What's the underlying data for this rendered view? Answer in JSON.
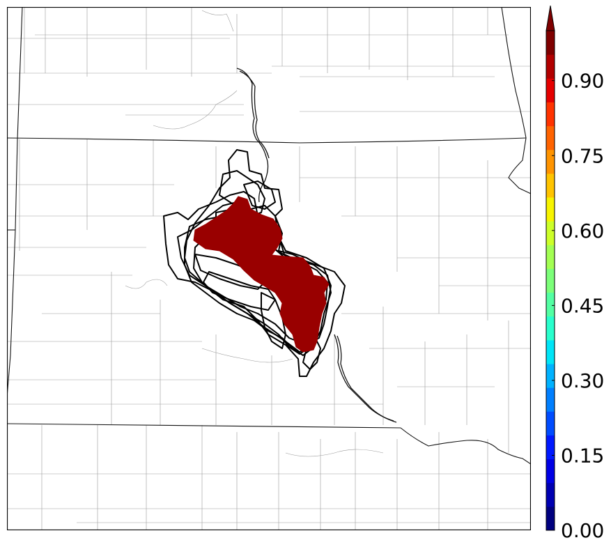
{
  "map": {
    "features": {
      "county-lines": "county-lines",
      "state-borders": "state-borders",
      "rivers": "rivers",
      "ensemble-contours": "ensemble-contours",
      "probability-area": "probability-area"
    },
    "fill_color": "#990000",
    "contour_color": "#000000"
  },
  "colorbar": {
    "min": 0.0,
    "max": 1.0,
    "extend": "max",
    "ticks": [
      "0.00",
      "0.15",
      "0.30",
      "0.45",
      "0.60",
      "0.75",
      "0.90"
    ],
    "colors": [
      "#00007f",
      "#0000b2",
      "#0000e5",
      "#0019ff",
      "#004cff",
      "#007fff",
      "#00b2ff",
      "#00e5f7",
      "#29ffcd",
      "#53ffa3",
      "#7cff79",
      "#a3ff53",
      "#cdff29",
      "#f7f400",
      "#ffc400",
      "#ff9400",
      "#ff6300",
      "#ff3300",
      "#e50000",
      "#b20000",
      "#7f0000"
    ]
  }
}
